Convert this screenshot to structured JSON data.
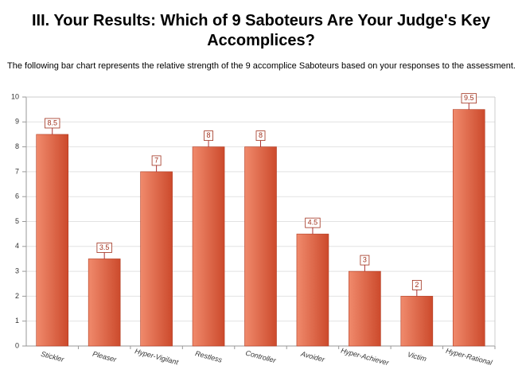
{
  "chart_data": {
    "type": "bar",
    "title": "III.  Your Results:  Which of 9 Saboteurs Are Your Judge's Key Accomplices?",
    "subtitle": "The following bar chart represents the relative strength of the 9 accomplice Saboteurs based on your responses to the assessment.",
    "categories": [
      "Stickler",
      "Pleaser",
      "Hyper-Vigilant",
      "Restless",
      "Controller",
      "Avoider",
      "Hyper-Achiever",
      "Victim",
      "Hyper-Rational"
    ],
    "values": [
      8.5,
      3.5,
      7,
      8,
      8,
      4.5,
      3,
      2,
      9.5
    ],
    "color": "#cc4a2c",
    "ylim": [
      0,
      10
    ],
    "yticks": [
      0,
      1,
      2,
      3,
      4,
      5,
      6,
      7,
      8,
      9,
      10
    ],
    "grid": true
  }
}
